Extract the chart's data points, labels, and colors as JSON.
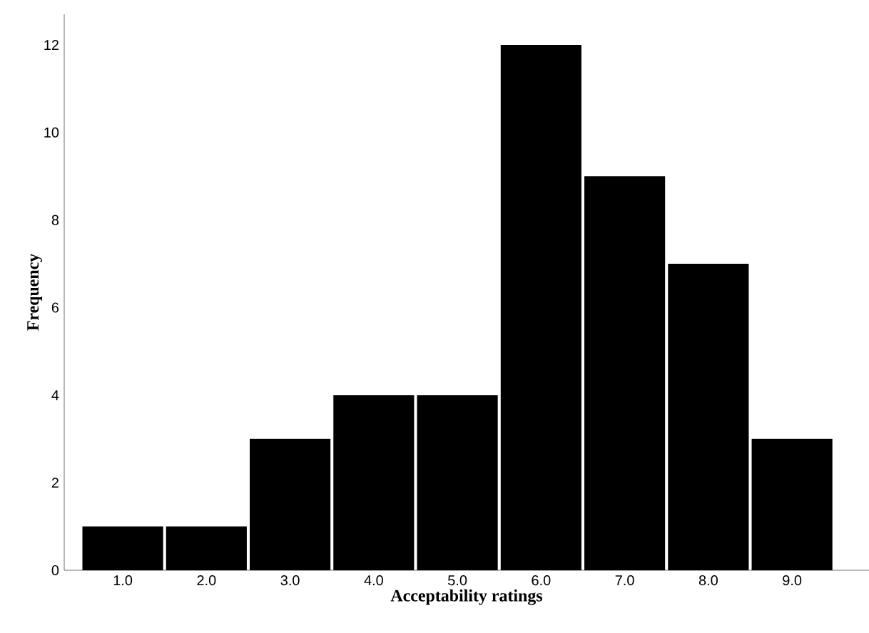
{
  "chart_data": {
    "type": "bar",
    "xlabel": "Acceptability ratings",
    "ylabel": "Frequency",
    "categories": [
      "1.0",
      "2.0",
      "3.0",
      "4.0",
      "5.0",
      "6.0",
      "7.0",
      "8.0",
      "9.0"
    ],
    "values": [
      1,
      1,
      3,
      4,
      4,
      12,
      9,
      7,
      3
    ],
    "color": "#000000",
    "ylim": [
      0,
      12.7
    ],
    "yticks": [
      0,
      2,
      4,
      6,
      8,
      10,
      12
    ]
  }
}
